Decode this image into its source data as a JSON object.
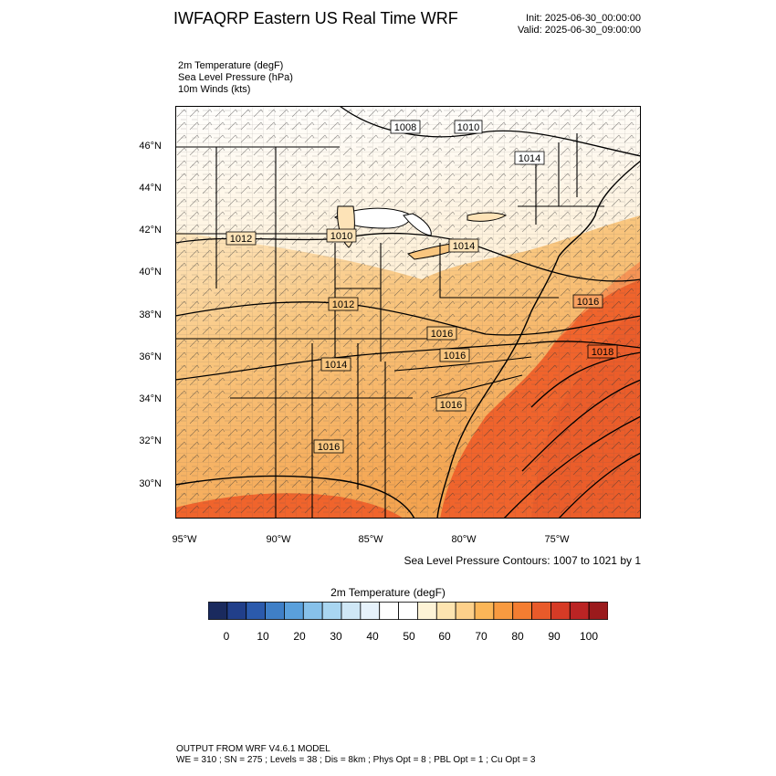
{
  "header": {
    "title": "IWFAQRP Eastern US Real Time WRF",
    "init": "Init: 2025-06-30_00:00:00",
    "valid": "Valid: 2025-06-30_09:00:00"
  },
  "fields": [
    "2m Temperature   (degF)",
    "Sea Level Pressure   (hPa)",
    "10m Winds   (kts)"
  ],
  "map": {
    "lat_labels": [
      "46°N",
      "44°N",
      "42°N",
      "40°N",
      "38°N",
      "36°N",
      "34°N",
      "32°N",
      "30°N"
    ],
    "lon_labels": [
      "95°W",
      "90°W",
      "85°W",
      "80°W",
      "75°W"
    ],
    "isobar_labels": [
      "1008",
      "1010",
      "1014",
      "1012",
      "1010",
      "1014",
      "1012",
      "1016",
      "1016",
      "1018",
      "1014",
      "1016",
      "1016",
      "1016",
      "1016"
    ],
    "colors": {
      "warm_sea": "#f0642c",
      "land_warm": "#f7b866",
      "land_mild": "#fde3b7",
      "cool": "#ffffff"
    }
  },
  "contour_note": "Sea Level Pressure Contours: 1007 to 1021 by 1",
  "colorbar": {
    "title": "2m Temperature  (degF)",
    "labels": [
      "0",
      "10",
      "20",
      "30",
      "40",
      "50",
      "60",
      "70",
      "80",
      "90",
      "100"
    ],
    "colors": [
      "#1a2a5e",
      "#213f8a",
      "#2b5aac",
      "#3f7fc7",
      "#5aa0dc",
      "#87c1ea",
      "#a9d6f1",
      "#cfe7f6",
      "#e6f2fb",
      "#ffffff",
      "#ffffff",
      "#fdf3d6",
      "#fde4b0",
      "#fdd08a",
      "#fbb658",
      "#f89a40",
      "#f47d31",
      "#e85a2a",
      "#d63b26",
      "#bb2424",
      "#9b1a1c"
    ]
  },
  "footer": {
    "line1": "OUTPUT FROM WRF V4.6.1 MODEL",
    "line2": "WE = 310 ; SN = 275 ; Levels = 38 ; Dis = 8km ; Phys Opt = 8 ; PBL Opt = 1 ; Cu Opt = 3"
  }
}
